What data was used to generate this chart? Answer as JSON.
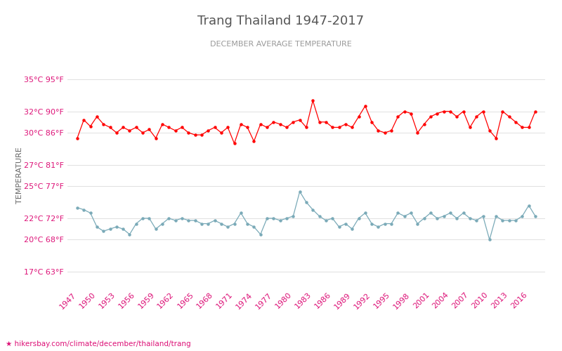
{
  "title": "Trang Thailand 1947-2017",
  "subtitle": "DECEMBER AVERAGE TEMPERATURE",
  "ylabel": "TEMPERATURE",
  "xlabel_url": "hikersbay.com/climate/december/thailand/trang",
  "years": [
    1947,
    1948,
    1949,
    1950,
    1951,
    1952,
    1953,
    1954,
    1955,
    1956,
    1957,
    1958,
    1959,
    1960,
    1961,
    1962,
    1963,
    1964,
    1965,
    1966,
    1967,
    1968,
    1969,
    1970,
    1971,
    1972,
    1973,
    1974,
    1975,
    1976,
    1977,
    1978,
    1979,
    1980,
    1981,
    1982,
    1983,
    1984,
    1985,
    1986,
    1987,
    1988,
    1989,
    1990,
    1991,
    1992,
    1993,
    1994,
    1995,
    1996,
    1997,
    1998,
    1999,
    2000,
    2001,
    2002,
    2003,
    2004,
    2005,
    2006,
    2007,
    2008,
    2009,
    2010,
    2011,
    2012,
    2013,
    2014,
    2015,
    2016,
    2017
  ],
  "day_temps": [
    29.5,
    31.2,
    30.6,
    31.5,
    30.8,
    30.5,
    30.0,
    30.5,
    30.2,
    30.5,
    30.0,
    30.3,
    29.5,
    30.8,
    30.5,
    30.2,
    30.5,
    30.0,
    29.8,
    29.8,
    30.2,
    30.5,
    30.0,
    30.5,
    29.0,
    30.8,
    30.5,
    29.2,
    30.8,
    30.5,
    31.0,
    30.8,
    30.5,
    31.0,
    31.2,
    30.5,
    33.0,
    31.0,
    31.0,
    30.5,
    30.5,
    30.8,
    30.5,
    31.5,
    32.5,
    31.0,
    30.2,
    30.0,
    30.2,
    31.5,
    32.0,
    31.8,
    30.0,
    30.8,
    31.5,
    31.8,
    32.0,
    32.0,
    31.5,
    32.0,
    30.5,
    31.5,
    32.0,
    30.2,
    29.5,
    32.0,
    31.5,
    31.0,
    30.5,
    30.5,
    32.0
  ],
  "night_temps": [
    23.0,
    22.8,
    22.5,
    21.2,
    20.8,
    21.0,
    21.2,
    21.0,
    20.5,
    21.5,
    22.0,
    22.0,
    21.0,
    21.5,
    22.0,
    21.8,
    22.0,
    21.8,
    21.8,
    21.5,
    21.5,
    21.8,
    21.5,
    21.2,
    21.5,
    22.5,
    21.5,
    21.2,
    20.5,
    22.0,
    22.0,
    21.8,
    22.0,
    22.2,
    24.5,
    23.5,
    22.8,
    22.2,
    21.8,
    22.0,
    21.2,
    21.5,
    21.0,
    22.0,
    22.5,
    21.5,
    21.2,
    21.5,
    21.5,
    22.5,
    22.2,
    22.5,
    21.5,
    22.0,
    22.5,
    22.0,
    22.2,
    22.5,
    22.0,
    22.5,
    22.0,
    21.8,
    22.2,
    20.0,
    22.2,
    21.8,
    21.8,
    21.8,
    22.2,
    23.2,
    22.2
  ],
  "day_color": "#ff0000",
  "night_color": "#7aaab8",
  "bg_color": "#ffffff",
  "grid_color": "#e0e0e0",
  "title_color": "#555555",
  "subtitle_color": "#999999",
  "ylabel_color": "#666666",
  "tick_label_color": "#dd1177",
  "yticks_c": [
    17,
    20,
    22,
    25,
    27,
    30,
    32,
    35
  ],
  "yticks_f": [
    63,
    68,
    72,
    77,
    81,
    86,
    90,
    95
  ],
  "ylim": [
    15.5,
    36.5
  ],
  "xlim": [
    1945.5,
    2018.5
  ],
  "xtick_years": [
    1947,
    1950,
    1953,
    1956,
    1959,
    1962,
    1965,
    1968,
    1971,
    1974,
    1977,
    1980,
    1983,
    1986,
    1989,
    1992,
    1995,
    1998,
    2001,
    2004,
    2007,
    2010,
    2013,
    2016
  ]
}
